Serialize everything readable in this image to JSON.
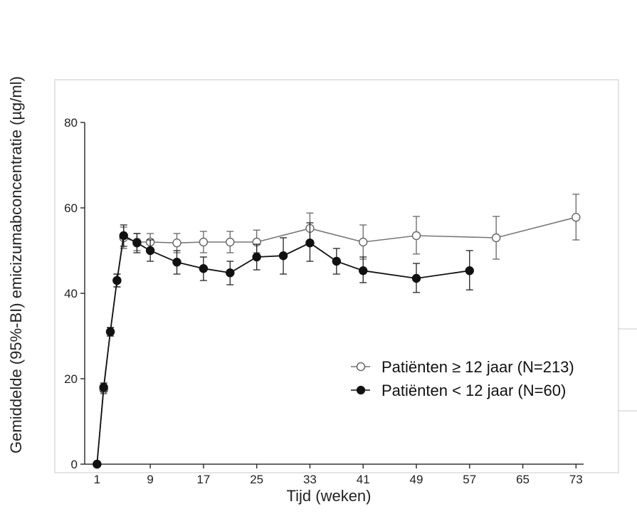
{
  "chart_data": {
    "type": "line",
    "xlabel": "Tijd (weken)",
    "ylabel": "Gemiddelde (95%-BI) emicizumabconcentratie (µg/ml)",
    "xlim": [
      0,
      75
    ],
    "ylim": [
      0,
      80
    ],
    "x_ticks": [
      1,
      9,
      17,
      25,
      33,
      41,
      49,
      57,
      65,
      73
    ],
    "y_ticks": [
      0,
      20,
      40,
      60,
      80
    ],
    "grid": false,
    "legend_position": "right",
    "series": [
      {
        "name": "Patiënten ≥ 12 jaar (N=213)",
        "marker": "open-circle",
        "color": "#777777",
        "points": [
          {
            "x": 1,
            "y": 0,
            "lo": 0,
            "hi": 0
          },
          {
            "x": 2,
            "y": 17.5,
            "lo": 16.5,
            "hi": 18.5
          },
          {
            "x": 3,
            "y": 31,
            "lo": 30,
            "hi": 32
          },
          {
            "x": 4,
            "y": 43,
            "lo": 41.5,
            "hi": 44.5
          },
          {
            "x": 5,
            "y": 53,
            "lo": 50.5,
            "hi": 55.5
          },
          {
            "x": 7,
            "y": 52,
            "lo": 50,
            "hi": 54
          },
          {
            "x": 9,
            "y": 52,
            "lo": 50,
            "hi": 54
          },
          {
            "x": 13,
            "y": 51.8,
            "lo": 49.5,
            "hi": 54
          },
          {
            "x": 17,
            "y": 52,
            "lo": 49.5,
            "hi": 54.5
          },
          {
            "x": 21,
            "y": 52,
            "lo": 49.5,
            "hi": 54.5
          },
          {
            "x": 25,
            "y": 52,
            "lo": 49.5,
            "hi": 54.8
          },
          {
            "x": 33,
            "y": 55.2,
            "lo": 51.8,
            "hi": 58.8
          },
          {
            "x": 41,
            "y": 52,
            "lo": 48,
            "hi": 56
          },
          {
            "x": 49,
            "y": 53.5,
            "lo": 49.2,
            "hi": 58
          },
          {
            "x": 61,
            "y": 53,
            "lo": 48,
            "hi": 58
          },
          {
            "x": 73,
            "y": 57.8,
            "lo": 52.5,
            "hi": 63.2
          }
        ]
      },
      {
        "name": "Patiënten < 12 jaar (N=60)",
        "marker": "filled-circle",
        "color": "#111111",
        "points": [
          {
            "x": 1,
            "y": 0,
            "lo": 0,
            "hi": 0
          },
          {
            "x": 2,
            "y": 18,
            "lo": 17,
            "hi": 19
          },
          {
            "x": 3,
            "y": 31,
            "lo": 30,
            "hi": 32
          },
          {
            "x": 4,
            "y": 43,
            "lo": 41.5,
            "hi": 44.5
          },
          {
            "x": 5,
            "y": 53.5,
            "lo": 51,
            "hi": 56
          },
          {
            "x": 7,
            "y": 51.8,
            "lo": 49.5,
            "hi": 54
          },
          {
            "x": 9,
            "y": 50,
            "lo": 47.5,
            "hi": 52.5
          },
          {
            "x": 13,
            "y": 47.3,
            "lo": 44.5,
            "hi": 50
          },
          {
            "x": 17,
            "y": 45.8,
            "lo": 43,
            "hi": 48.5
          },
          {
            "x": 21,
            "y": 44.8,
            "lo": 42,
            "hi": 47.5
          },
          {
            "x": 25,
            "y": 48.5,
            "lo": 45.5,
            "hi": 51.5
          },
          {
            "x": 29,
            "y": 48.8,
            "lo": 44.5,
            "hi": 53
          },
          {
            "x": 33,
            "y": 51.8,
            "lo": 47.5,
            "hi": 56.5
          },
          {
            "x": 37,
            "y": 47.5,
            "lo": 44.5,
            "hi": 50.5
          },
          {
            "x": 41,
            "y": 45.3,
            "lo": 42.5,
            "hi": 48.5
          },
          {
            "x": 49,
            "y": 43.5,
            "lo": 40.2,
            "hi": 47
          },
          {
            "x": 57,
            "y": 45.3,
            "lo": 40.8,
            "hi": 50
          }
        ]
      }
    ]
  }
}
